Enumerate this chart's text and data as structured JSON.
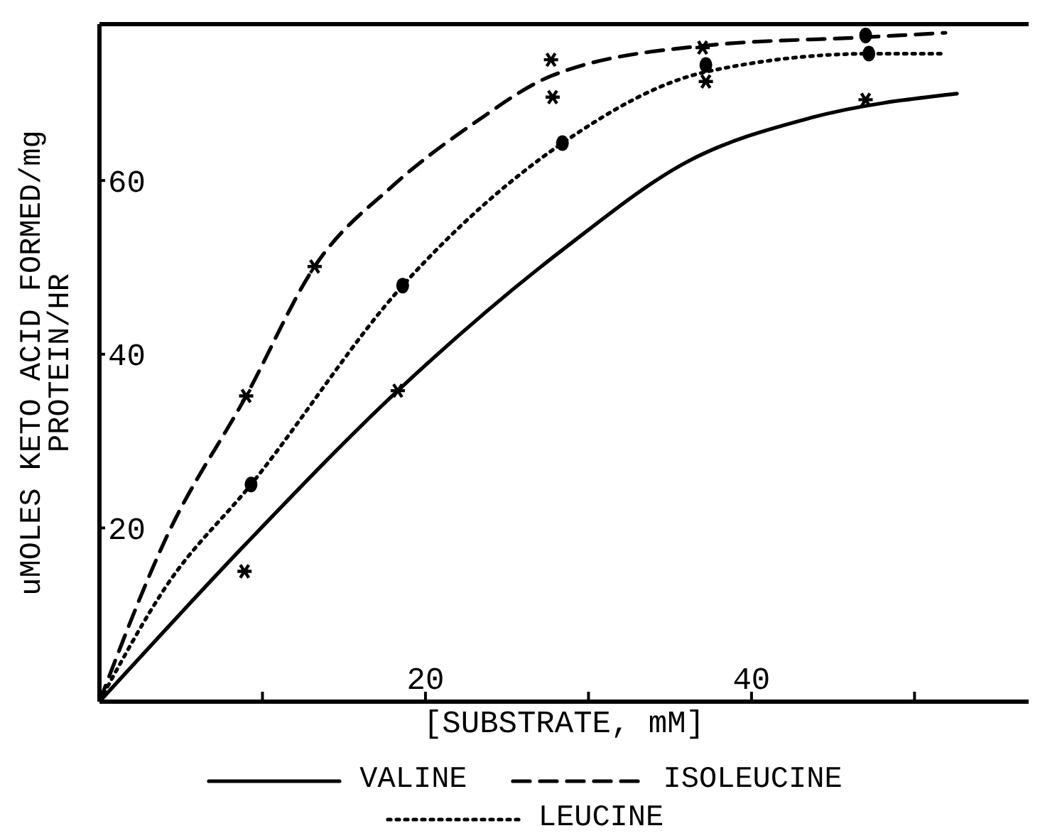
{
  "chart_data": {
    "type": "line",
    "xlabel": "[SUBSTRATE, mM]",
    "ylabel": "uMOLES KETO ACID FORMED/mg\nPROTEIN/HR",
    "xlim": [
      0,
      57
    ],
    "ylim": [
      0,
      78
    ],
    "xticks": [
      {
        "value": 10,
        "label": null
      },
      20,
      {
        "value": 30,
        "label": null
      },
      40,
      {
        "value": 50,
        "label": null
      }
    ],
    "yticks": [
      20,
      40,
      60
    ],
    "legend": "bottom",
    "series": [
      {
        "name": "VALINE",
        "color": "#000000",
        "line_style": "solid",
        "x": [
          0,
          9.0,
          18.3,
          28.6,
          36.1,
          43.6,
          52.6
        ],
        "values": [
          0,
          18.2,
          35.8,
          52.3,
          62.2,
          67.2,
          70.0
        ]
      },
      {
        "name": "ISOLEUCINE",
        "color": "#000000",
        "line_style": "dashed",
        "x": [
          0,
          4.1,
          9.0,
          13.2,
          18.0,
          22.9,
          27.8,
          37.0,
          47.0,
          51.9
        ],
        "values": [
          0,
          18.9,
          35.2,
          50.1,
          59.4,
          66.5,
          72.1,
          75.5,
          76.5,
          77.0
        ]
      },
      {
        "name": "LEUCINE",
        "color": "#000000",
        "line_style": "dotted",
        "x": [
          0,
          4.1,
          9.3,
          18.6,
          28.4,
          37.2,
          47.4,
          51.9
        ],
        "values": [
          0,
          13.3,
          25.0,
          47.9,
          64.3,
          72.5,
          74.6,
          74.6
        ]
      },
      {
        "type": "scatter",
        "color": "#000000",
        "marker": "cross",
        "x": [
          8.9,
          18.3,
          47.0,
          9.0,
          13.2,
          27.7,
          37.0,
          27.8,
          37.2
        ],
        "values": [
          15.0,
          35.8,
          69.3,
          35.2,
          50.1,
          73.9,
          75.3,
          69.6,
          71.4
        ]
      },
      {
        "type": "scatter",
        "color": "#000000",
        "marker": "circle",
        "x": [
          9.3,
          18.6,
          28.4,
          37.2,
          47.2,
          47.0
        ],
        "values": [
          25.0,
          47.9,
          64.3,
          73.3,
          74.6,
          76.7
        ]
      }
    ]
  }
}
